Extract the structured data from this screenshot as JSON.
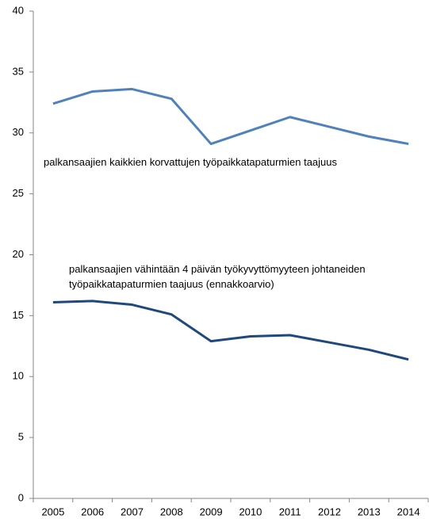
{
  "chart_data": {
    "type": "line",
    "categories": [
      "2005",
      "2006",
      "2007",
      "2008",
      "2009",
      "2010",
      "2011",
      "2012",
      "2013",
      "2014"
    ],
    "series": [
      {
        "name": "palkansaajien kaikkien korvattujen työpaikkatapaturmien taajuus",
        "color": "#4f81bd",
        "values": [
          32.4,
          33.4,
          33.6,
          32.8,
          29.1,
          30.2,
          31.3,
          30.5,
          29.7,
          29.1
        ]
      },
      {
        "name": "palkansaajien vähintään 4 päivän työkyvyttömyyteen johtaneiden työpaikkatapaturmien taajuus (ennakkoarvio)",
        "color": "#1f497d",
        "values": [
          16.1,
          16.2,
          15.9,
          15.1,
          12.9,
          13.3,
          13.4,
          12.8,
          12.2,
          11.4
        ]
      }
    ],
    "ylim": [
      0,
      40
    ],
    "yticks": [
      0,
      5,
      10,
      15,
      20,
      25,
      30,
      35,
      40
    ],
    "grid": false
  }
}
